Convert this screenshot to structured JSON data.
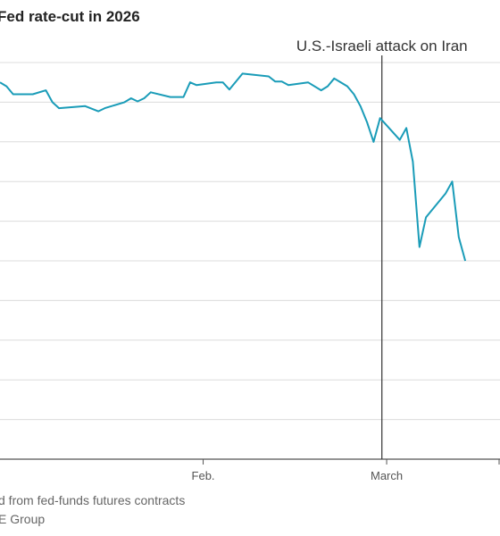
{
  "chart_data": {
    "type": "line",
    "title": "Fed rate-cut in 2026",
    "x_ticks": [
      "Feb.",
      "March"
    ],
    "annotation": {
      "label": "U.S.-Israeli attack on Iran",
      "x": "2026-02-28"
    },
    "series": [
      {
        "color": "#1a9cb8",
        "points": [
          [
            "2026-01-01",
            95
          ],
          [
            "2026-01-02",
            94
          ],
          [
            "2026-01-03",
            92
          ],
          [
            "2026-01-05",
            92
          ],
          [
            "2026-01-06",
            92
          ],
          [
            "2026-01-08",
            93
          ],
          [
            "2026-01-09",
            90
          ],
          [
            "2026-01-10",
            88.5
          ],
          [
            "2026-01-14",
            89
          ],
          [
            "2026-01-16",
            87.7
          ],
          [
            "2026-01-17",
            88.5
          ],
          [
            "2026-01-20",
            90
          ],
          [
            "2026-01-21",
            91
          ],
          [
            "2026-01-22",
            90.2
          ],
          [
            "2026-01-23",
            91
          ],
          [
            "2026-01-24",
            92.5
          ],
          [
            "2026-01-27",
            91.3
          ],
          [
            "2026-01-29",
            91.3
          ],
          [
            "2026-01-30",
            95
          ],
          [
            "2026-01-31",
            94.3
          ],
          [
            "2026-02-03",
            95
          ],
          [
            "2026-02-04",
            95
          ],
          [
            "2026-02-05",
            93.2
          ],
          [
            "2026-02-07",
            97.2
          ],
          [
            "2026-02-11",
            96.5
          ],
          [
            "2026-02-12",
            95.2
          ],
          [
            "2026-02-13",
            95.2
          ],
          [
            "2026-02-14",
            94.3
          ],
          [
            "2026-02-17",
            95
          ],
          [
            "2026-02-19",
            93
          ],
          [
            "2026-02-20",
            94
          ],
          [
            "2026-02-21",
            96
          ],
          [
            "2026-02-23",
            94
          ],
          [
            "2026-02-24",
            92
          ],
          [
            "2026-02-25",
            89
          ],
          [
            "2026-02-26",
            85
          ],
          [
            "2026-02-27",
            80
          ],
          [
            "2026-02-28",
            86
          ],
          [
            "2026-03-03",
            80.5
          ],
          [
            "2026-03-04",
            83.5
          ],
          [
            "2026-03-05",
            75
          ],
          [
            "2026-03-06",
            53.5
          ],
          [
            "2026-03-07",
            61
          ],
          [
            "2026-03-10",
            67
          ],
          [
            "2026-03-11",
            70
          ],
          [
            "2026-03-12",
            56
          ],
          [
            "2026-03-13",
            50
          ]
        ]
      }
    ],
    "footnotes": [
      "d from fed-funds futures contracts",
      "E Group"
    ]
  }
}
